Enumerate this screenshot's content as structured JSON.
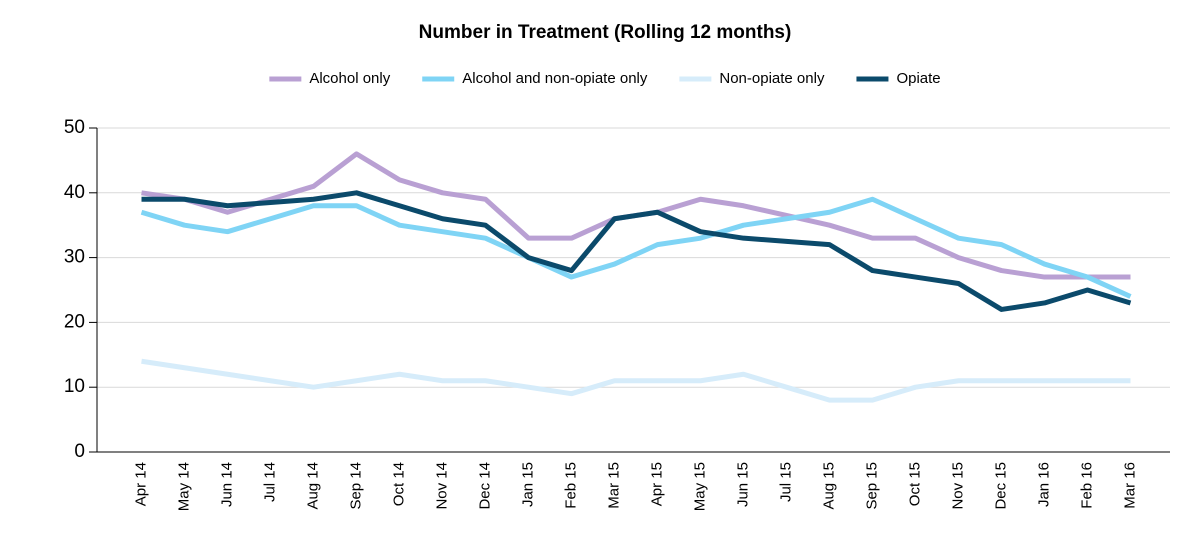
{
  "chart_data": {
    "type": "line",
    "title": "Number in Treatment (Rolling 12 months)",
    "categories": [
      "Apr 14",
      "May 14",
      "Jun 14",
      "Jul 14",
      "Aug 14",
      "Sep 14",
      "Oct 14",
      "Nov 14",
      "Dec 14",
      "Jan 15",
      "Feb 15",
      "Mar 15",
      "Apr 15",
      "May 15",
      "Jun 15",
      "Jul 15",
      "Aug 15",
      "Sep 15",
      "Oct 15",
      "Nov 15",
      "Dec 15",
      "Jan 16",
      "Feb 16",
      "Mar 16"
    ],
    "series": [
      {
        "name": "Alcohol only",
        "color": "#b9a0d3",
        "values": [
          40,
          39,
          37,
          39,
          41,
          46,
          42,
          40,
          39,
          33,
          33,
          36,
          37,
          39,
          38,
          36.5,
          35,
          33,
          33,
          30,
          28,
          27,
          27,
          27
        ]
      },
      {
        "name": "Alcohol and non-opiate only",
        "color": "#7fd4f5",
        "values": [
          37,
          35,
          34,
          36,
          38,
          38,
          35,
          34,
          33,
          30,
          27,
          29,
          32,
          33,
          35,
          36,
          37,
          39,
          36,
          33,
          32,
          29,
          27,
          24
        ]
      },
      {
        "name": "Non-opiate only",
        "color": "#d6ecfa",
        "values": [
          14,
          13,
          12,
          11,
          10,
          11,
          12,
          11,
          11,
          10,
          9,
          11,
          11,
          11,
          12,
          10,
          8,
          8,
          10,
          11,
          11,
          11,
          11,
          11
        ]
      },
      {
        "name": "Opiate",
        "color": "#0b4a6b",
        "values": [
          39,
          39,
          38,
          38.5,
          39,
          40,
          38,
          36,
          35,
          30,
          28,
          36,
          37,
          34,
          33,
          32.5,
          32,
          28,
          27,
          26,
          22,
          23,
          25,
          23
        ]
      }
    ],
    "ylim": [
      0,
      50
    ],
    "yticks": [
      0,
      10,
      20,
      30,
      40,
      50
    ],
    "grid": true,
    "legend": "top"
  }
}
